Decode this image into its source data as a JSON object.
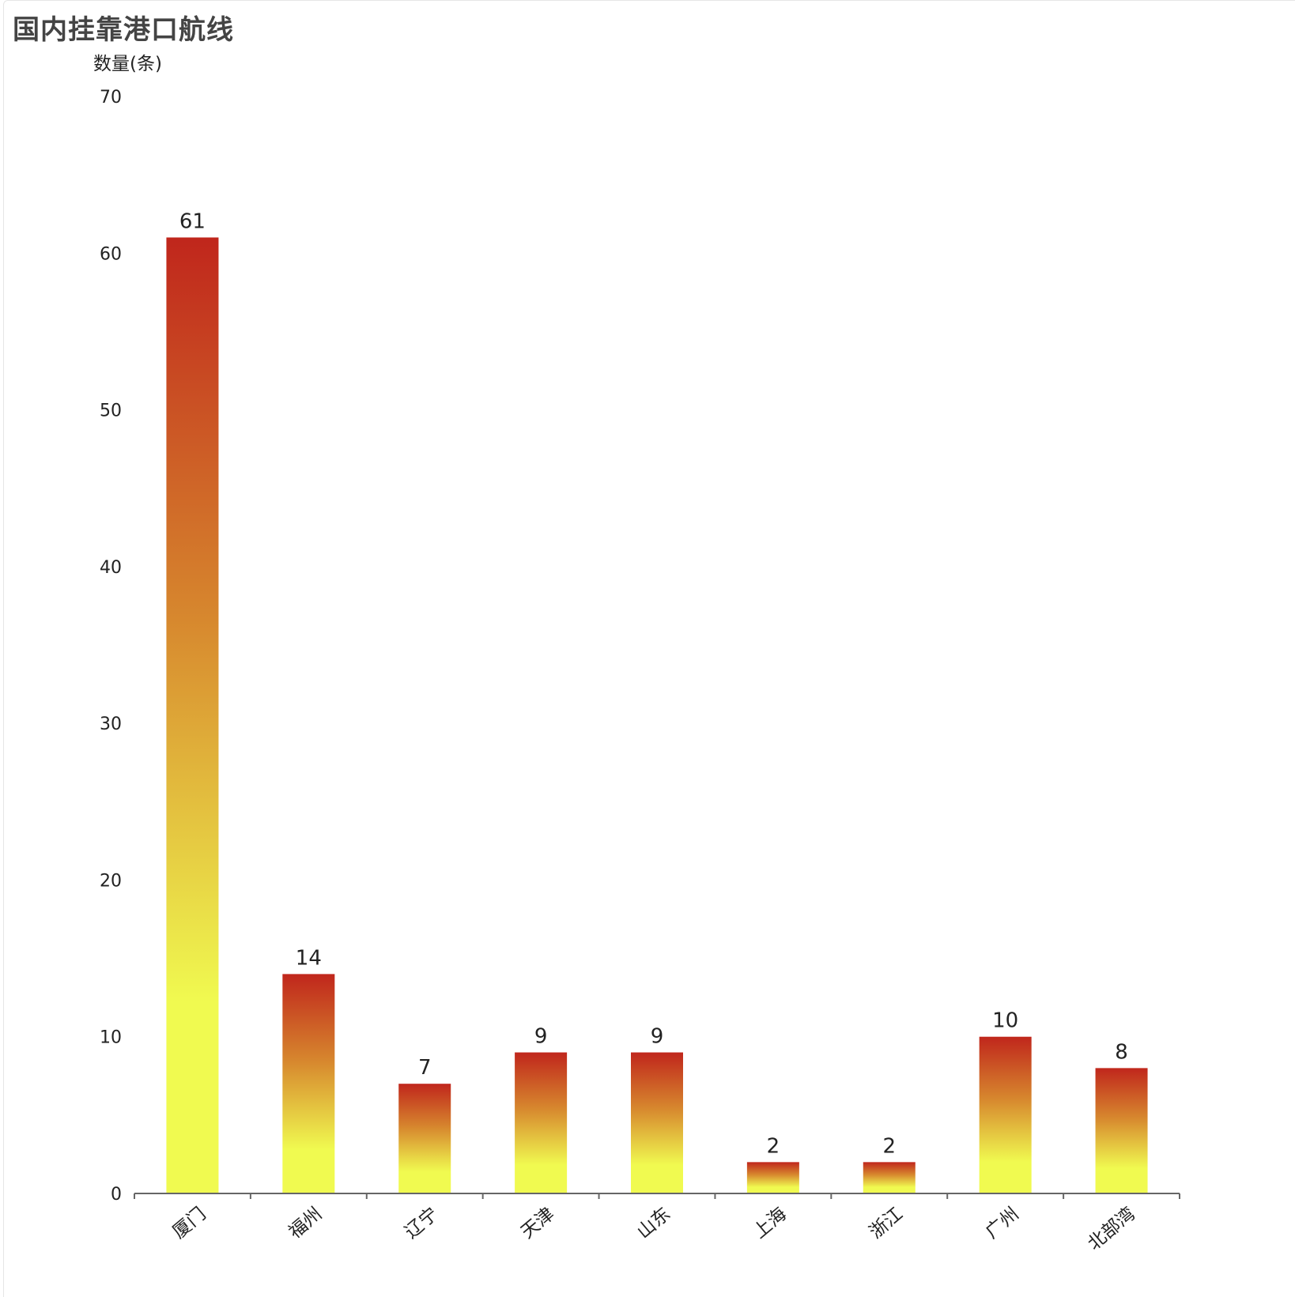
{
  "chart": {
    "title": "国内挂靠港口航线",
    "ylabel": "数量(条)"
  },
  "colors": {
    "bar_top": "#c0261c",
    "bar_mid": "#d7882e",
    "bar_bottom": "#f0fa50",
    "axis": "#666666",
    "text": "#222222"
  },
  "chart_data": {
    "type": "bar",
    "title": "国内挂靠港口航线",
    "xlabel": "",
    "ylabel": "数量(条)",
    "categories": [
      "厦门",
      "福州",
      "辽宁",
      "天津",
      "山东",
      "上海",
      "浙江",
      "广州",
      "北部湾"
    ],
    "values": [
      61,
      14,
      7,
      9,
      9,
      2,
      2,
      10,
      8
    ],
    "ylim": [
      0,
      70
    ],
    "yticks": [
      0,
      10,
      20,
      30,
      40,
      50,
      60,
      70
    ],
    "grid": false,
    "data_labels": true
  }
}
